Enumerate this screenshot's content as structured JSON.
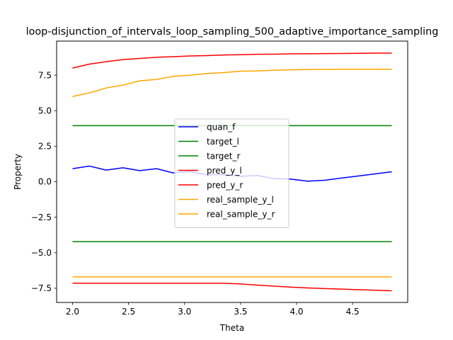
{
  "chart_data": {
    "type": "line",
    "title": "loop-disjunction_of_intervals_loop_sampling_500_adaptive_importance_sampling",
    "xlabel": "Theta",
    "ylabel": "Property",
    "xlim": [
      1.858,
      4.992
    ],
    "ylim": [
      -8.5,
      9.9
    ],
    "xticks": [
      2.0,
      2.5,
      3.0,
      3.5,
      4.0,
      4.5
    ],
    "xtick_labels": [
      "2.0",
      "2.5",
      "3.0",
      "3.5",
      "4.0",
      "4.5"
    ],
    "yticks": [
      -7.5,
      -5.0,
      -2.5,
      0.0,
      2.5,
      5.0,
      7.5
    ],
    "ytick_labels": [
      "−7.5",
      "−5.0",
      "−2.5",
      "0.0",
      "2.5",
      "5.0",
      "7.5"
    ],
    "grid": false,
    "legend_position": "center",
    "x": [
      2.0,
      2.15,
      2.3,
      2.45,
      2.6,
      2.75,
      2.9,
      3.05,
      3.2,
      3.35,
      3.5,
      3.65,
      3.8,
      3.95,
      4.1,
      4.25,
      4.4,
      4.55,
      4.7,
      4.85
    ],
    "series": [
      {
        "name": "quan_f",
        "color": "#0000ff",
        "values": [
          0.92,
          1.1,
          0.82,
          0.98,
          0.78,
          0.92,
          0.62,
          0.72,
          0.48,
          0.5,
          0.38,
          0.44,
          0.22,
          0.18,
          0.04,
          0.1,
          0.26,
          0.4,
          0.55,
          0.7
        ]
      },
      {
        "name": "target_l",
        "color": "#008000",
        "values": [
          3.95,
          3.95,
          3.95,
          3.95,
          3.95,
          3.95,
          3.95,
          3.95,
          3.95,
          3.95,
          3.95,
          3.95,
          3.95,
          3.95,
          3.95,
          3.95,
          3.95,
          3.95,
          3.95,
          3.95
        ]
      },
      {
        "name": "target_r",
        "color": "#008000",
        "values": [
          -4.22,
          -4.22,
          -4.22,
          -4.22,
          -4.22,
          -4.22,
          -4.22,
          -4.22,
          -4.22,
          -4.22,
          -4.22,
          -4.22,
          -4.22,
          -4.22,
          -4.22,
          -4.22,
          -4.22,
          -4.22,
          -4.22,
          -4.22
        ]
      },
      {
        "name": "pred_y_l",
        "color": "#ff0000",
        "values": [
          8.0,
          8.28,
          8.45,
          8.6,
          8.68,
          8.76,
          8.8,
          8.85,
          8.88,
          8.92,
          8.94,
          8.97,
          8.98,
          9.0,
          9.01,
          9.02,
          9.03,
          9.04,
          9.05,
          9.05
        ]
      },
      {
        "name": "pred_y_r",
        "color": "#ff0000",
        "values": [
          -7.15,
          -7.15,
          -7.15,
          -7.15,
          -7.15,
          -7.15,
          -7.15,
          -7.15,
          -7.15,
          -7.15,
          -7.2,
          -7.28,
          -7.35,
          -7.42,
          -7.48,
          -7.52,
          -7.56,
          -7.6,
          -7.64,
          -7.68
        ]
      },
      {
        "name": "real_sample_y_l",
        "color": "#ffa500",
        "values": [
          6.0,
          6.25,
          6.6,
          6.8,
          7.1,
          7.2,
          7.42,
          7.5,
          7.62,
          7.68,
          7.78,
          7.8,
          7.85,
          7.88,
          7.9,
          7.91,
          7.92,
          7.92,
          7.92,
          7.92
        ]
      },
      {
        "name": "real_sample_y_r",
        "color": "#ffa500",
        "values": [
          -6.7,
          -6.7,
          -6.7,
          -6.7,
          -6.7,
          -6.7,
          -6.7,
          -6.7,
          -6.7,
          -6.7,
          -6.7,
          -6.7,
          -6.7,
          -6.7,
          -6.7,
          -6.7,
          -6.7,
          -6.7,
          -6.7,
          -6.7
        ]
      }
    ]
  }
}
